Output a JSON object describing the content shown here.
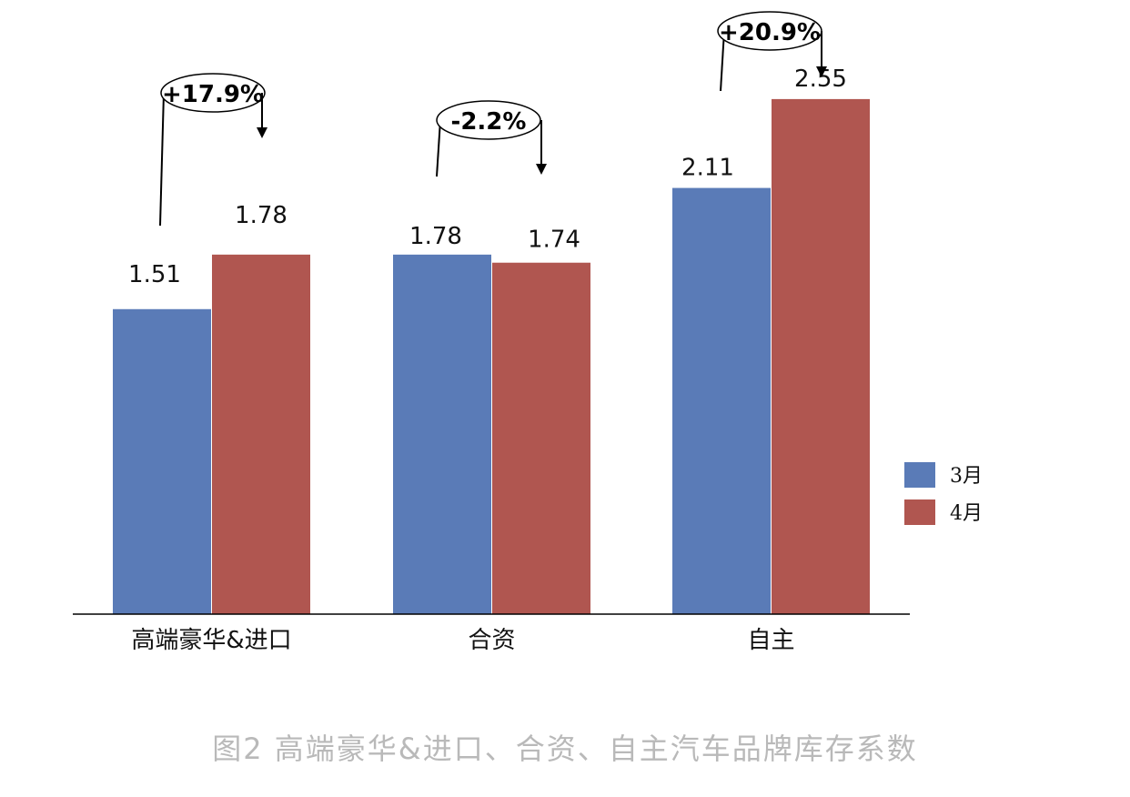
{
  "chart_data": {
    "type": "bar",
    "categories": [
      "高端豪华&进口",
      "合资",
      "自主"
    ],
    "series": [
      {
        "name": "3月",
        "values": [
          1.51,
          1.78,
          2.11
        ],
        "color": "#5a7bb7"
      },
      {
        "name": "4月",
        "values": [
          1.78,
          1.74,
          2.55
        ],
        "color": "#b05650"
      }
    ],
    "data_labels": {
      "3月": [
        "1.51",
        "1.78",
        "2.11"
      ],
      "4月": [
        "1.78",
        "1.74",
        "2.55"
      ]
    },
    "annotations": [
      {
        "category": "高端豪华&进口",
        "text": "+17.9%"
      },
      {
        "category": "合资",
        "text": "-2.2%"
      },
      {
        "category": "自主",
        "text": "+20.9%"
      }
    ],
    "ylim": [
      0,
      2.55
    ],
    "legend_position": "right",
    "grid": false,
    "y_axis_visible": false
  },
  "caption": "图2  高端豪华&进口、合资、自主汽车品牌库存系数"
}
